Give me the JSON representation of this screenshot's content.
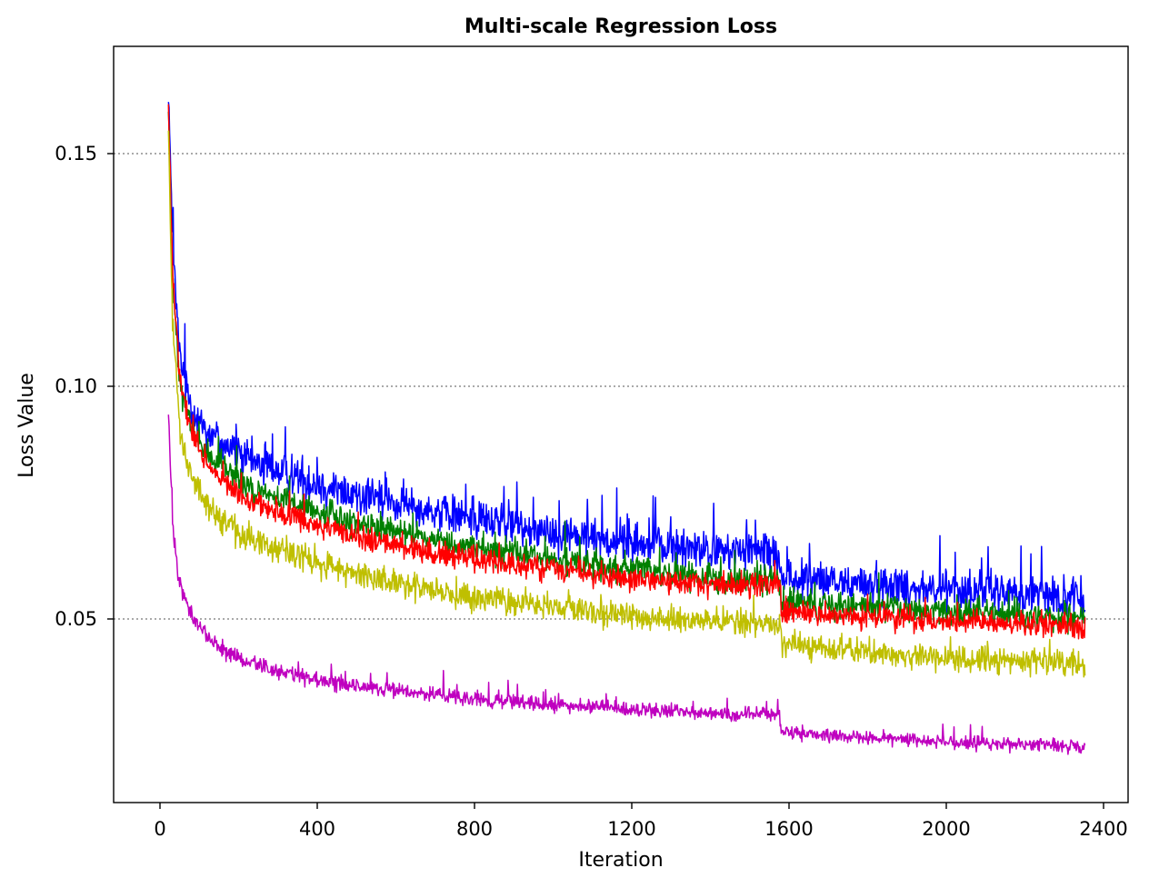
{
  "chart_data": {
    "type": "line",
    "title": "Multi-scale Regression Loss",
    "xlabel": "Iteration",
    "ylabel": "Loss Value",
    "xlim": [
      -140,
      2450
    ],
    "ylim": [
      0.01,
      0.173
    ],
    "xticks": [
      0,
      400,
      800,
      1200,
      1600,
      2000,
      2400
    ],
    "xtick_labels": [
      "0",
      "400",
      "800",
      "1200",
      "1600",
      "2000",
      "2400"
    ],
    "yticks": [
      0.05,
      0.1,
      0.15
    ],
    "ytick_labels": [
      "0.05",
      "0.10",
      "0.15"
    ],
    "grid": "horizontal-dotted",
    "x_range": [
      0,
      2340
    ],
    "series": [
      {
        "name": "blue",
        "color": "#0000ff",
        "noise": 0.0065,
        "spike_max": 0.012,
        "points": [
          [
            0,
            0.165
          ],
          [
            10,
            0.13
          ],
          [
            30,
            0.105
          ],
          [
            60,
            0.095
          ],
          [
            100,
            0.09
          ],
          [
            200,
            0.084
          ],
          [
            400,
            0.078
          ],
          [
            600,
            0.074
          ],
          [
            800,
            0.071
          ],
          [
            1000,
            0.068
          ],
          [
            1200,
            0.066
          ],
          [
            1400,
            0.064
          ],
          [
            1560,
            0.064
          ],
          [
            1565,
            0.058
          ],
          [
            1800,
            0.057
          ],
          [
            2000,
            0.056
          ],
          [
            2340,
            0.054
          ]
        ]
      },
      {
        "name": "green",
        "color": "#008000",
        "noise": 0.0045,
        "spike_max": 0.006,
        "points": [
          [
            0,
            0.16
          ],
          [
            10,
            0.125
          ],
          [
            30,
            0.1
          ],
          [
            60,
            0.09
          ],
          [
            100,
            0.085
          ],
          [
            200,
            0.078
          ],
          [
            400,
            0.072
          ],
          [
            600,
            0.068
          ],
          [
            800,
            0.065
          ],
          [
            1000,
            0.062
          ],
          [
            1200,
            0.06
          ],
          [
            1400,
            0.058
          ],
          [
            1560,
            0.058
          ],
          [
            1565,
            0.053
          ],
          [
            1800,
            0.052
          ],
          [
            2000,
            0.051
          ],
          [
            2340,
            0.05
          ]
        ]
      },
      {
        "name": "red",
        "color": "#ff0000",
        "noise": 0.004,
        "spike_max": 0.004,
        "points": [
          [
            0,
            0.16
          ],
          [
            10,
            0.125
          ],
          [
            30,
            0.1
          ],
          [
            60,
            0.089
          ],
          [
            100,
            0.083
          ],
          [
            200,
            0.075
          ],
          [
            400,
            0.069
          ],
          [
            600,
            0.065
          ],
          [
            800,
            0.062
          ],
          [
            1000,
            0.06
          ],
          [
            1200,
            0.058
          ],
          [
            1400,
            0.057
          ],
          [
            1560,
            0.057
          ],
          [
            1565,
            0.051
          ],
          [
            1800,
            0.05
          ],
          [
            2000,
            0.049
          ],
          [
            2340,
            0.048
          ]
        ]
      },
      {
        "name": "yellow",
        "color": "#bfbf00",
        "noise": 0.0045,
        "spike_max": 0.004,
        "points": [
          [
            0,
            0.155
          ],
          [
            10,
            0.115
          ],
          [
            30,
            0.09
          ],
          [
            60,
            0.08
          ],
          [
            100,
            0.074
          ],
          [
            200,
            0.067
          ],
          [
            400,
            0.061
          ],
          [
            600,
            0.057
          ],
          [
            800,
            0.054
          ],
          [
            1000,
            0.052
          ],
          [
            1200,
            0.05
          ],
          [
            1400,
            0.049
          ],
          [
            1560,
            0.049
          ],
          [
            1565,
            0.044
          ],
          [
            1800,
            0.042
          ],
          [
            2000,
            0.041
          ],
          [
            2340,
            0.04
          ]
        ]
      },
      {
        "name": "magenta",
        "color": "#bf00bf",
        "noise": 0.003,
        "spike_max": 0.004,
        "points": [
          [
            0,
            0.095
          ],
          [
            10,
            0.07
          ],
          [
            25,
            0.058
          ],
          [
            60,
            0.05
          ],
          [
            120,
            0.044
          ],
          [
            200,
            0.04
          ],
          [
            400,
            0.036
          ],
          [
            600,
            0.034
          ],
          [
            800,
            0.032
          ],
          [
            1000,
            0.031
          ],
          [
            1200,
            0.03
          ],
          [
            1400,
            0.029
          ],
          [
            1560,
            0.029
          ],
          [
            1565,
            0.025
          ],
          [
            1800,
            0.024
          ],
          [
            2000,
            0.023
          ],
          [
            2340,
            0.022
          ]
        ]
      }
    ]
  }
}
